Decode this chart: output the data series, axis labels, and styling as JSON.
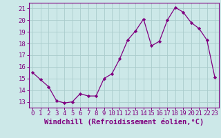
{
  "hours": [
    0,
    1,
    2,
    3,
    4,
    5,
    6,
    7,
    8,
    9,
    10,
    11,
    12,
    13,
    14,
    15,
    16,
    17,
    18,
    19,
    20,
    21,
    22,
    23
  ],
  "values": [
    15.5,
    14.9,
    14.3,
    13.1,
    12.9,
    13.0,
    13.7,
    13.5,
    13.5,
    15.0,
    15.4,
    16.7,
    18.3,
    19.1,
    20.1,
    17.8,
    18.2,
    20.0,
    21.1,
    20.7,
    19.8,
    19.3,
    18.3,
    15.1
  ],
  "line_color": "#800080",
  "marker": "D",
  "marker_size": 2.2,
  "bg_color": "#cce8e8",
  "grid_color": "#aacccc",
  "xlabel": "Windchill (Refroidissement éolien,°C)",
  "ylabel_ticks": [
    13,
    14,
    15,
    16,
    17,
    18,
    19,
    20,
    21
  ],
  "ylim": [
    12.5,
    21.5
  ],
  "xlim": [
    -0.5,
    23.5
  ],
  "tick_color": "#800080",
  "label_color": "#800080",
  "axis_fontsize": 6.5,
  "xlabel_fontsize": 7.5
}
